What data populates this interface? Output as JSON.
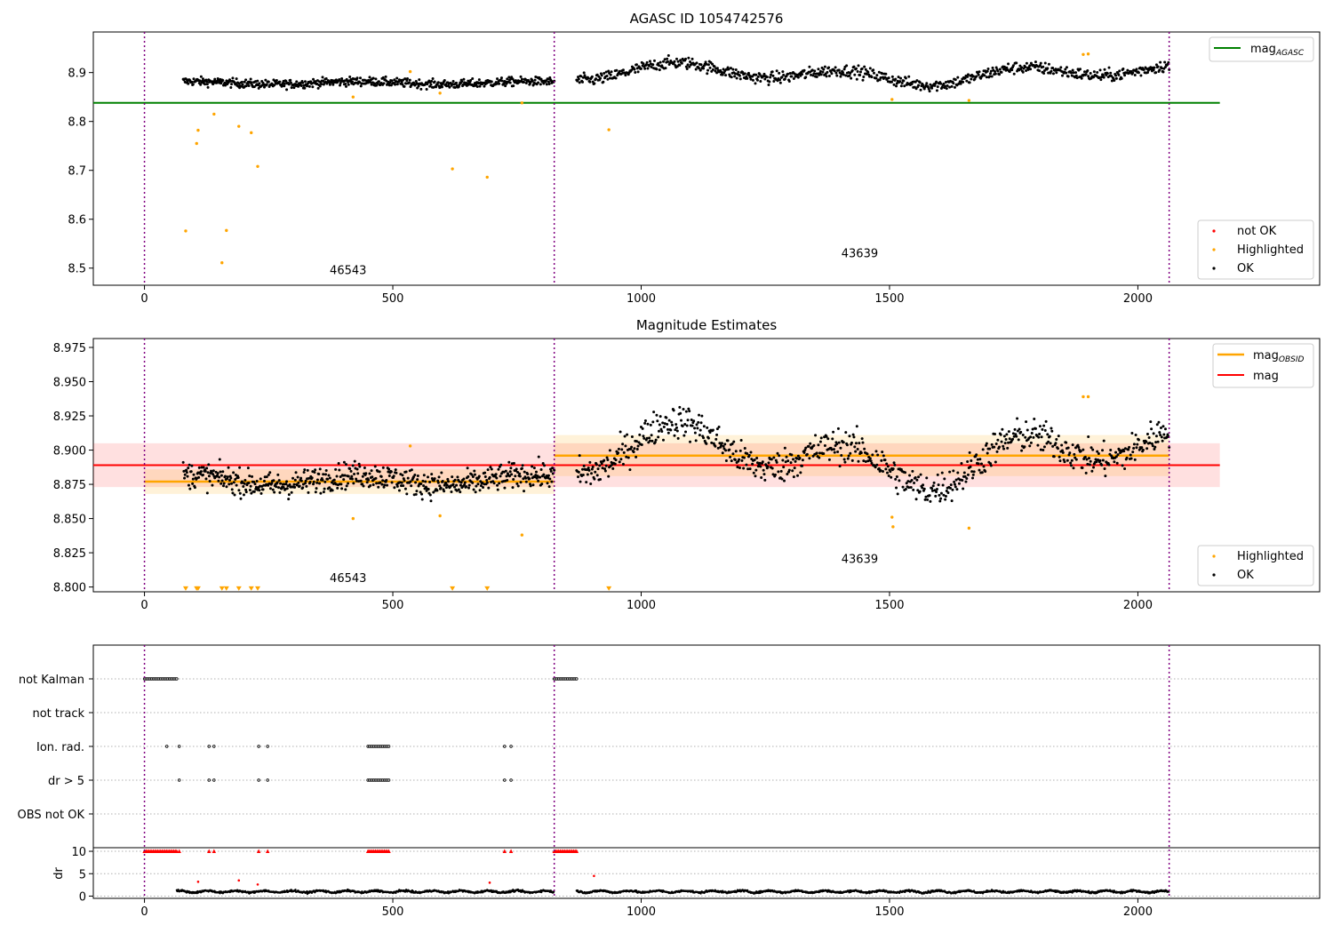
{
  "chart_data": [
    {
      "type": "scatter",
      "title": "AGASC ID 1054742576",
      "xlabel": "",
      "ylabel": "",
      "xlim": [
        -103,
        2366
      ],
      "ylim": [
        8.465,
        8.983
      ],
      "xticks": [
        0,
        500,
        1000,
        1500,
        2000
      ],
      "xtick_labels": [
        "0",
        "500",
        "1000",
        "1500",
        "2000"
      ],
      "yticks": [
        8.5,
        8.6,
        8.7,
        8.8,
        8.9
      ],
      "ytick_labels": [
        "8.5",
        "8.6",
        "8.7",
        "8.8",
        "8.9"
      ],
      "grid": false,
      "obsid_boundaries": [
        0,
        825,
        2063
      ],
      "obsid_labels": [
        {
          "x": 410,
          "y": 8.488,
          "text": "46543"
        },
        {
          "x": 1440,
          "y": 8.522,
          "text": "43639"
        }
      ],
      "lines": [
        {
          "name": "mag$_{AGASC}$",
          "label_main": "mag",
          "label_sub": "AGASC",
          "x": [
            -103,
            2165
          ],
          "y": [
            8.838,
            8.838
          ],
          "color": "#008000"
        }
      ],
      "ok_segments": [
        {
          "x": [
            78,
            825
          ],
          "level": 8.879,
          "noise": 0.008,
          "wave": 0.003,
          "n": 600
        },
        {
          "x": [
            870,
            2063
          ],
          "level": 8.897,
          "noise": 0.011,
          "wave": 0.013,
          "n": 800
        }
      ],
      "highlighted": {
        "x": [
          83,
          105,
          108,
          140,
          156,
          165,
          190,
          215,
          228,
          420,
          535,
          595,
          620,
          690,
          760,
          935,
          1505,
          1660,
          1890,
          1900
        ],
        "y": [
          8.576,
          8.755,
          8.782,
          8.815,
          8.511,
          8.577,
          8.79,
          8.777,
          8.708,
          8.85,
          8.902,
          8.858,
          8.703,
          8.686,
          8.838,
          8.783,
          8.845,
          8.843,
          8.937,
          8.938
        ]
      },
      "legend_upper": {
        "position": "upper right",
        "entries": [
          "mag$_{AGASC}$"
        ]
      },
      "legend_lower": {
        "position": "lower right",
        "entries": [
          "not OK",
          "Highlighted",
          "OK"
        ]
      },
      "colors": {
        "ok": "#000000",
        "highlighted": "#ffa500",
        "not_ok": "#ff0000",
        "boundary": "#800080",
        "agasc": "#008000"
      }
    },
    {
      "type": "scatter",
      "title": "Magnitude Estimates",
      "xlabel": "",
      "ylabel": "",
      "xlim": [
        -103,
        2366
      ],
      "ylim": [
        8.7965,
        8.9815
      ],
      "xticks": [
        0,
        500,
        1000,
        1500,
        2000
      ],
      "xtick_labels": [
        "0",
        "500",
        "1000",
        "1500",
        "2000"
      ],
      "yticks": [
        8.8,
        8.825,
        8.85,
        8.875,
        8.9,
        8.925,
        8.95,
        8.975
      ],
      "ytick_labels": [
        "8.800",
        "8.825",
        "8.850",
        "8.875",
        "8.900",
        "8.925",
        "8.950",
        "8.975"
      ],
      "grid": false,
      "obsid_boundaries": [
        0,
        825,
        2063
      ],
      "obsid_labels": [
        {
          "x": 410,
          "y": 8.8035,
          "text": "46543"
        },
        {
          "x": 1440,
          "y": 8.8175,
          "text": "43639"
        }
      ],
      "mag": {
        "value": 8.889,
        "band": [
          8.873,
          8.905
        ],
        "x": [
          -103,
          2165
        ],
        "color": "#ff0000"
      },
      "mag_obsid": [
        {
          "x": [
            0,
            825
          ],
          "value": 8.877,
          "band": [
            8.868,
            8.886
          ]
        },
        {
          "x": [
            825,
            2063
          ],
          "value": 8.896,
          "band": [
            8.881,
            8.911
          ]
        }
      ],
      "ok_segments": [
        {
          "x": [
            78,
            825
          ],
          "level": 8.878,
          "noise": 0.0085,
          "wave": 0.004,
          "n": 600
        },
        {
          "x": [
            870,
            2063
          ],
          "level": 8.896,
          "noise": 0.011,
          "wave": 0.014,
          "n": 800
        }
      ],
      "highlighted": {
        "x": [
          420,
          535,
          595,
          760,
          1505,
          1507,
          1660,
          1890,
          1900
        ],
        "y": [
          8.85,
          8.903,
          8.852,
          8.838,
          8.851,
          8.844,
          8.843,
          8.939,
          8.939
        ]
      },
      "clipped_low": {
        "x": [
          83,
          105,
          108,
          156,
          165,
          190,
          215,
          228,
          620,
          690,
          935
        ],
        "y": 8.7985
      },
      "legend_upper": {
        "position": "upper right",
        "entries": [
          "mag$_{OBSID}$",
          "mag"
        ]
      },
      "legend_lower": {
        "position": "lower right",
        "entries": [
          "Highlighted",
          "OK"
        ]
      },
      "colors": {
        "ok": "#000000",
        "highlighted": "#ffa500",
        "mag": "#ff0000",
        "mag_obsid": "#ffa500",
        "boundary": "#800080"
      }
    },
    {
      "type": "scatter",
      "title": "",
      "xlabel": "",
      "ylabel": "dr",
      "xlim": [
        -103,
        2366
      ],
      "xticks": [
        0,
        500,
        1000,
        1500,
        2000
      ],
      "xtick_labels": [
        "0",
        "500",
        "1000",
        "1500",
        "2000"
      ],
      "flag_rows": [
        "not Kalman",
        "not track",
        "Ion. rad.",
        "dr > 5",
        "OBS not OK"
      ],
      "flags": {
        "not Kalman": [
          [
            0,
            65
          ],
          [
            825,
            870
          ]
        ],
        "not track": [],
        "Ion. rad.": [
          [
            45,
            45
          ],
          [
            70,
            70
          ],
          [
            130,
            130
          ],
          [
            140,
            140
          ],
          [
            230,
            230
          ],
          [
            248,
            248
          ],
          [
            450,
            492
          ],
          [
            725,
            725
          ],
          [
            738,
            738
          ]
        ],
        "dr > 5": [
          [
            70,
            70
          ],
          [
            130,
            130
          ],
          [
            140,
            140
          ],
          [
            230,
            230
          ],
          [
            248,
            248
          ],
          [
            450,
            492
          ],
          [
            725,
            725
          ],
          [
            738,
            738
          ]
        ],
        "OBS not OK": []
      },
      "dr_ylim": [
        -0.5,
        10.8
      ],
      "dr_yticks": [
        0,
        5,
        10
      ],
      "dr_ytick_labels": [
        "0",
        "5",
        "10"
      ],
      "dr_capped": {
        "value": 10,
        "ranges": [
          [
            0,
            65
          ],
          [
            70,
            70
          ],
          [
            130,
            130
          ],
          [
            140,
            140
          ],
          [
            230,
            230
          ],
          [
            248,
            248
          ],
          [
            450,
            492
          ],
          [
            725,
            725
          ],
          [
            738,
            738
          ],
          [
            825,
            870
          ]
        ]
      },
      "dr_points_red": {
        "x": [
          108,
          190,
          228,
          695,
          905
        ],
        "y": [
          3.2,
          3.5,
          2.6,
          3.0,
          4.5
        ]
      },
      "dr_baseline": {
        "x": [
          [
            65,
            825
          ],
          [
            870,
            2063
          ]
        ],
        "level": 1.0,
        "noise": 0.35
      },
      "colors": {
        "ok": "#000000",
        "not_ok": "#ff0000",
        "boundary": "#800080",
        "grid": "#b0b0b0"
      }
    }
  ]
}
